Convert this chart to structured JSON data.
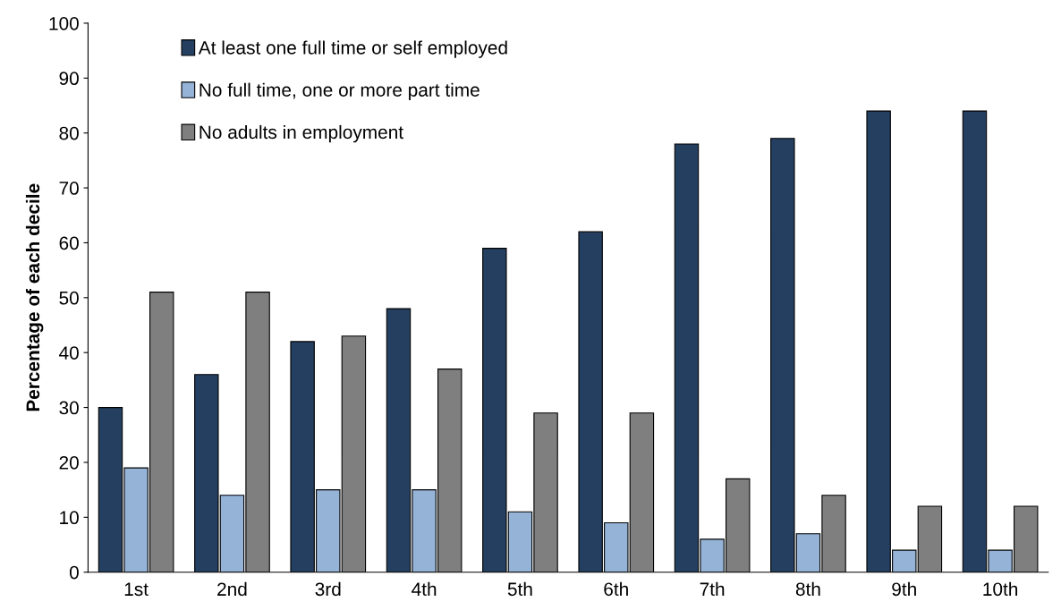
{
  "chart_data": {
    "type": "bar",
    "ylabel": "Percentage of each decile",
    "categories": [
      "1st",
      "2nd",
      "3rd",
      "4th",
      "5th",
      "6th",
      "7th",
      "8th",
      "9th",
      "10th"
    ],
    "series": [
      {
        "name": "At least one full time or self employed",
        "color": "#243f60",
        "values": [
          30,
          36,
          42,
          48,
          59,
          62,
          78,
          79,
          84,
          84
        ]
      },
      {
        "name": "No full time, one or more part time",
        "color": "#95b3d7",
        "values": [
          19,
          14,
          15,
          15,
          11,
          9,
          6,
          7,
          4,
          4
        ]
      },
      {
        "name": "No adults in employment",
        "color": "#7f7f7f",
        "values": [
          51,
          51,
          43,
          37,
          29,
          29,
          17,
          14,
          12,
          12
        ]
      }
    ],
    "ylim": [
      0,
      100
    ],
    "yticks": [
      0,
      10,
      20,
      30,
      40,
      50,
      60,
      70,
      80,
      90,
      100
    ],
    "grid": false,
    "legend": "top left"
  }
}
